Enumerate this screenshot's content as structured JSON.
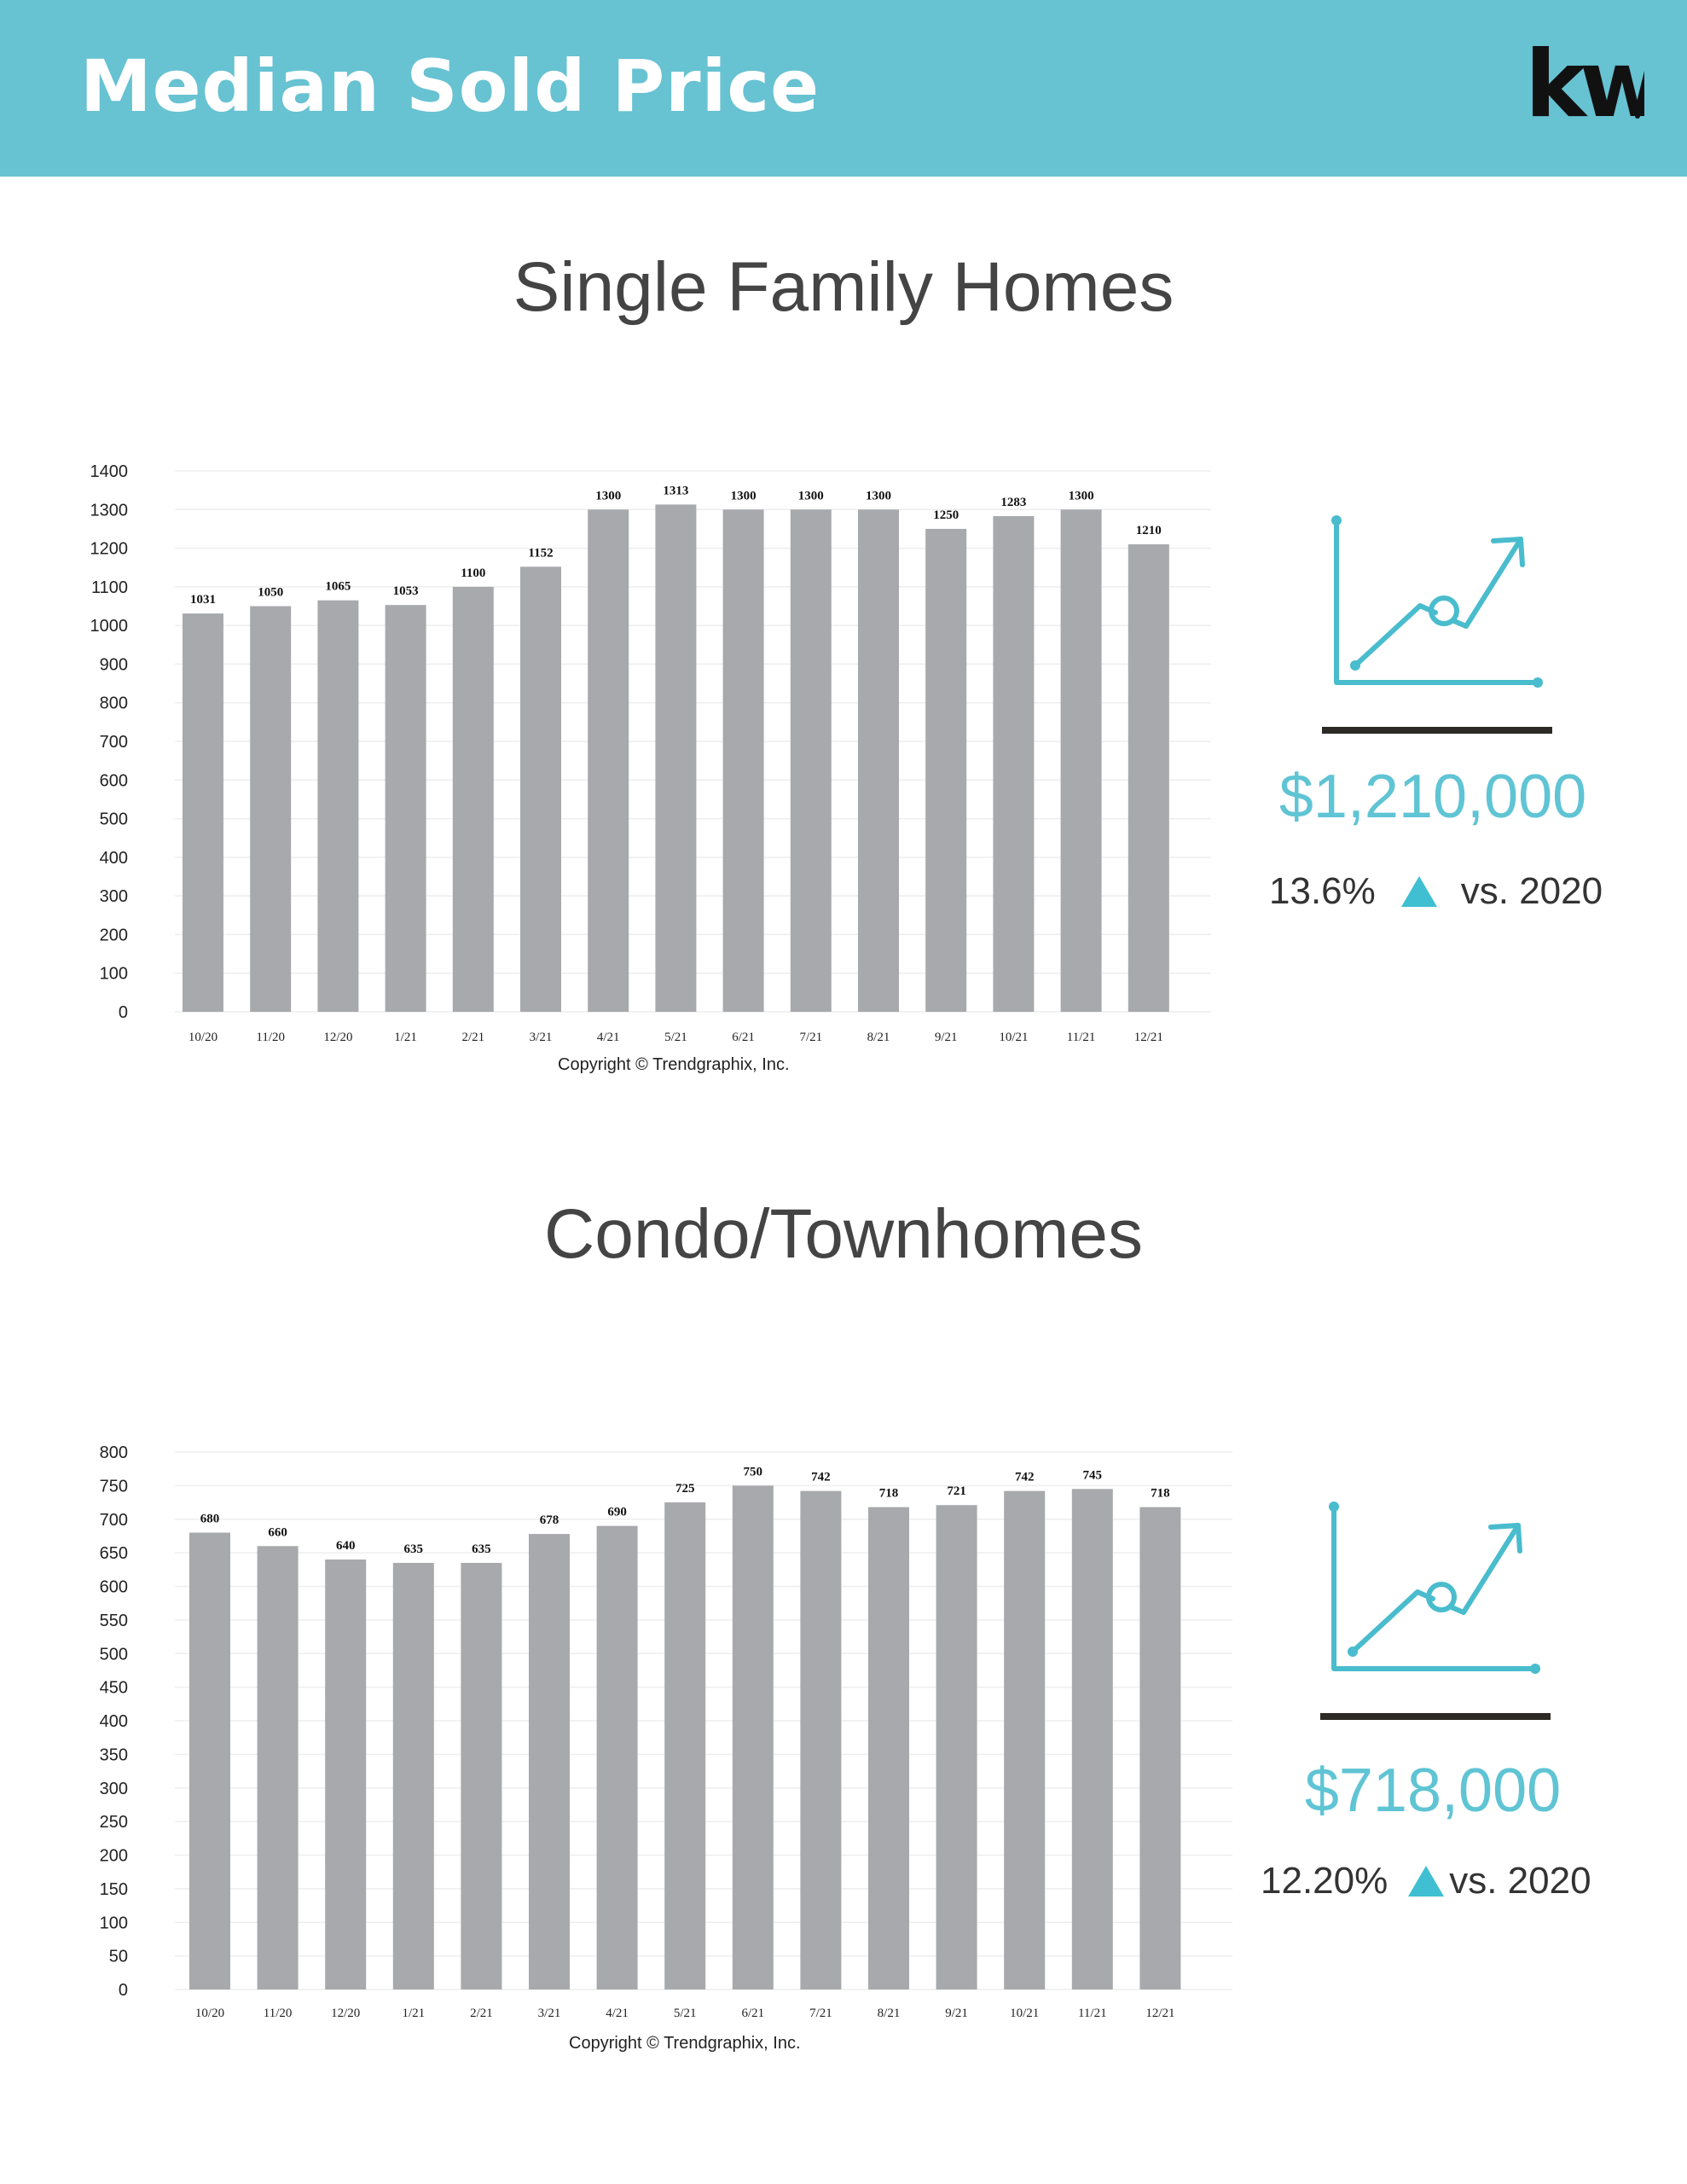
{
  "header": {
    "title": "Median Sold Price",
    "logo_text": "kw"
  },
  "colors": {
    "header_bg": "#67c2d2",
    "bar": "#a7a9ac",
    "accent": "#5fc4d4",
    "rule": "#2d2a26"
  },
  "sections": [
    {
      "title": "Single Family Homes",
      "copyright": "Copyright © Trendgraphix, Inc.",
      "kpi": {
        "icon": "trend-up-chart-icon",
        "value": "$1,210,000",
        "change": "13.6%",
        "comparison": "vs. 2020"
      }
    },
    {
      "title": "Condo/Townhomes",
      "copyright": "Copyright © Trendgraphix, Inc.",
      "kpi": {
        "icon": "trend-up-chart-icon",
        "value": "$718,000",
        "change": "12.20%",
        "comparison": "vs. 2020"
      }
    }
  ],
  "chart_data": [
    {
      "type": "bar",
      "title": "Single Family Homes",
      "categories": [
        "10/20",
        "11/20",
        "12/20",
        "1/21",
        "2/21",
        "3/21",
        "4/21",
        "5/21",
        "6/21",
        "7/21",
        "8/21",
        "9/21",
        "10/21",
        "11/21",
        "12/21"
      ],
      "values": [
        1031,
        1050,
        1065,
        1053,
        1100,
        1152,
        1300,
        1313,
        1300,
        1300,
        1300,
        1250,
        1283,
        1300,
        1210
      ],
      "ylim": [
        0,
        1400
      ],
      "yticks": [
        0,
        100,
        200,
        300,
        400,
        500,
        600,
        700,
        800,
        900,
        1000,
        1100,
        1200,
        1300,
        1400
      ],
      "grid": true,
      "data_labels": true
    },
    {
      "type": "bar",
      "title": "Condo/Townhomes",
      "categories": [
        "10/20",
        "11/20",
        "12/20",
        "1/21",
        "2/21",
        "3/21",
        "4/21",
        "5/21",
        "6/21",
        "7/21",
        "8/21",
        "9/21",
        "10/21",
        "11/21",
        "12/21"
      ],
      "values": [
        680,
        660,
        640,
        635,
        635,
        678,
        690,
        725,
        750,
        742,
        718,
        721,
        742,
        745,
        718
      ],
      "ylim": [
        0,
        800
      ],
      "yticks": [
        0,
        50,
        100,
        150,
        200,
        250,
        300,
        350,
        400,
        450,
        500,
        550,
        600,
        650,
        700,
        750,
        800
      ],
      "grid": true,
      "data_labels": true
    }
  ]
}
